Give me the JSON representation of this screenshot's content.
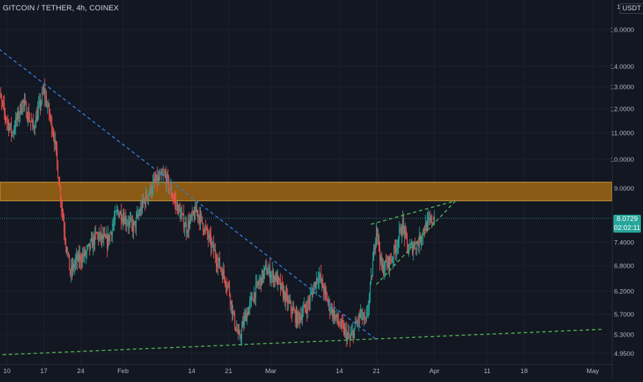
{
  "header": {
    "symbol_title": "GITCOIN / TETHER, 4h, COINEX",
    "currency": "USDT"
  },
  "price_badge": {
    "price": "8.0729",
    "countdown": "02:02:11"
  },
  "colors": {
    "background": "#131722",
    "up": "#26a69a",
    "down": "#ef5350",
    "resistance_zone": "#8a5a14",
    "downtrend_line": "#2e7ad6",
    "green_trendline": "#4caf50",
    "price_line": "#26a69a"
  },
  "chart_data": {
    "type": "candlestick",
    "title": "GITCOIN / TETHER, 4h, COINEX",
    "y_scale": "log",
    "ylim": [
      4.76,
      17.8
    ],
    "y_ticks": [
      "16.0000",
      "14.0000",
      "13.0000",
      "12.0000",
      "11.0000",
      "10.0000",
      "9.0000",
      "7.4000",
      "6.8000",
      "6.2000",
      "5.7000",
      "5.3000",
      "4.9500"
    ],
    "y_ticks_top_partial": "1",
    "x_ticks": [
      "10",
      "17",
      "24",
      "Feb",
      "14",
      "21",
      "Mar",
      "14",
      "21",
      "Apr",
      "11",
      "18",
      "May"
    ],
    "last_price": 8.0729,
    "countdown": "02:02:11",
    "close_path": [
      {
        "x": "Jan 8",
        "y": 13.0
      },
      {
        "x": "Jan 10",
        "y": 11.5
      },
      {
        "x": "Jan 11",
        "y": 11.0
      },
      {
        "x": "Jan 13",
        "y": 12.3
      },
      {
        "x": "Jan 15",
        "y": 11.2
      },
      {
        "x": "Jan 17",
        "y": 12.8
      },
      {
        "x": "Jan 18",
        "y": 11.8
      },
      {
        "x": "Jan 19",
        "y": 10.8
      },
      {
        "x": "Jan 20",
        "y": 9.0
      },
      {
        "x": "Jan 21",
        "y": 7.6
      },
      {
        "x": "Jan 22",
        "y": 6.6
      },
      {
        "x": "Jan 23",
        "y": 6.9
      },
      {
        "x": "Jan 25",
        "y": 7.1
      },
      {
        "x": "Jan 27",
        "y": 7.6
      },
      {
        "x": "Jan 29",
        "y": 7.4
      },
      {
        "x": "Jan 31",
        "y": 8.3
      },
      {
        "x": "Feb 3",
        "y": 7.8
      },
      {
        "x": "Feb 5",
        "y": 8.6
      },
      {
        "x": "Feb 7",
        "y": 9.2
      },
      {
        "x": "Feb 9",
        "y": 9.4
      },
      {
        "x": "Feb 11",
        "y": 8.5
      },
      {
        "x": "Feb 13",
        "y": 7.8
      },
      {
        "x": "Feb 15",
        "y": 8.3
      },
      {
        "x": "Feb 17",
        "y": 7.6
      },
      {
        "x": "Feb 19",
        "y": 6.9
      },
      {
        "x": "Feb 21",
        "y": 6.3
      },
      {
        "x": "Feb 22",
        "y": 5.6
      },
      {
        "x": "Feb 23",
        "y": 5.2
      },
      {
        "x": "Feb 24",
        "y": 5.6
      },
      {
        "x": "Feb 26",
        "y": 6.2
      },
      {
        "x": "Feb 28",
        "y": 6.7
      },
      {
        "x": "Mar 2",
        "y": 6.5
      },
      {
        "x": "Mar 4",
        "y": 6.0
      },
      {
        "x": "Mar 6",
        "y": 5.6
      },
      {
        "x": "Mar 8",
        "y": 5.9
      },
      {
        "x": "Mar 10",
        "y": 6.6
      },
      {
        "x": "Mar 12",
        "y": 5.9
      },
      {
        "x": "Mar 14",
        "y": 5.5
      },
      {
        "x": "Mar 16",
        "y": 5.2
      },
      {
        "x": "Mar 18",
        "y": 5.7
      },
      {
        "x": "Mar 19",
        "y": 5.5
      },
      {
        "x": "Mar 20",
        "y": 6.4
      },
      {
        "x": "Mar 21",
        "y": 7.9
      },
      {
        "x": "Mar 22",
        "y": 6.7
      },
      {
        "x": "Mar 24",
        "y": 7.0
      },
      {
        "x": "Mar 26",
        "y": 7.9
      },
      {
        "x": "Mar 27",
        "y": 7.2
      },
      {
        "x": "Mar 29",
        "y": 7.4
      },
      {
        "x": "Mar 30",
        "y": 7.8
      },
      {
        "x": "Apr 1",
        "y": 8.0729
      }
    ],
    "resistance_zone": [
      8.6,
      9.2
    ],
    "downtrend_line": [
      {
        "x": "Jan 2",
        "y": 16.4
      },
      {
        "x": "Mar 21",
        "y": 5.2
      }
    ],
    "support_line": [
      {
        "x": "Jan 8",
        "y": 4.92
      },
      {
        "x": "May 3",
        "y": 5.4
      }
    ],
    "rising_wedge_upper": [
      {
        "x": "Mar 20",
        "y": 7.9
      },
      {
        "x": "Apr 5",
        "y": 8.6
      }
    ],
    "rising_wedge_lower": [
      {
        "x": "Mar 21",
        "y": 6.35
      },
      {
        "x": "Apr 5",
        "y": 8.6
      }
    ]
  }
}
